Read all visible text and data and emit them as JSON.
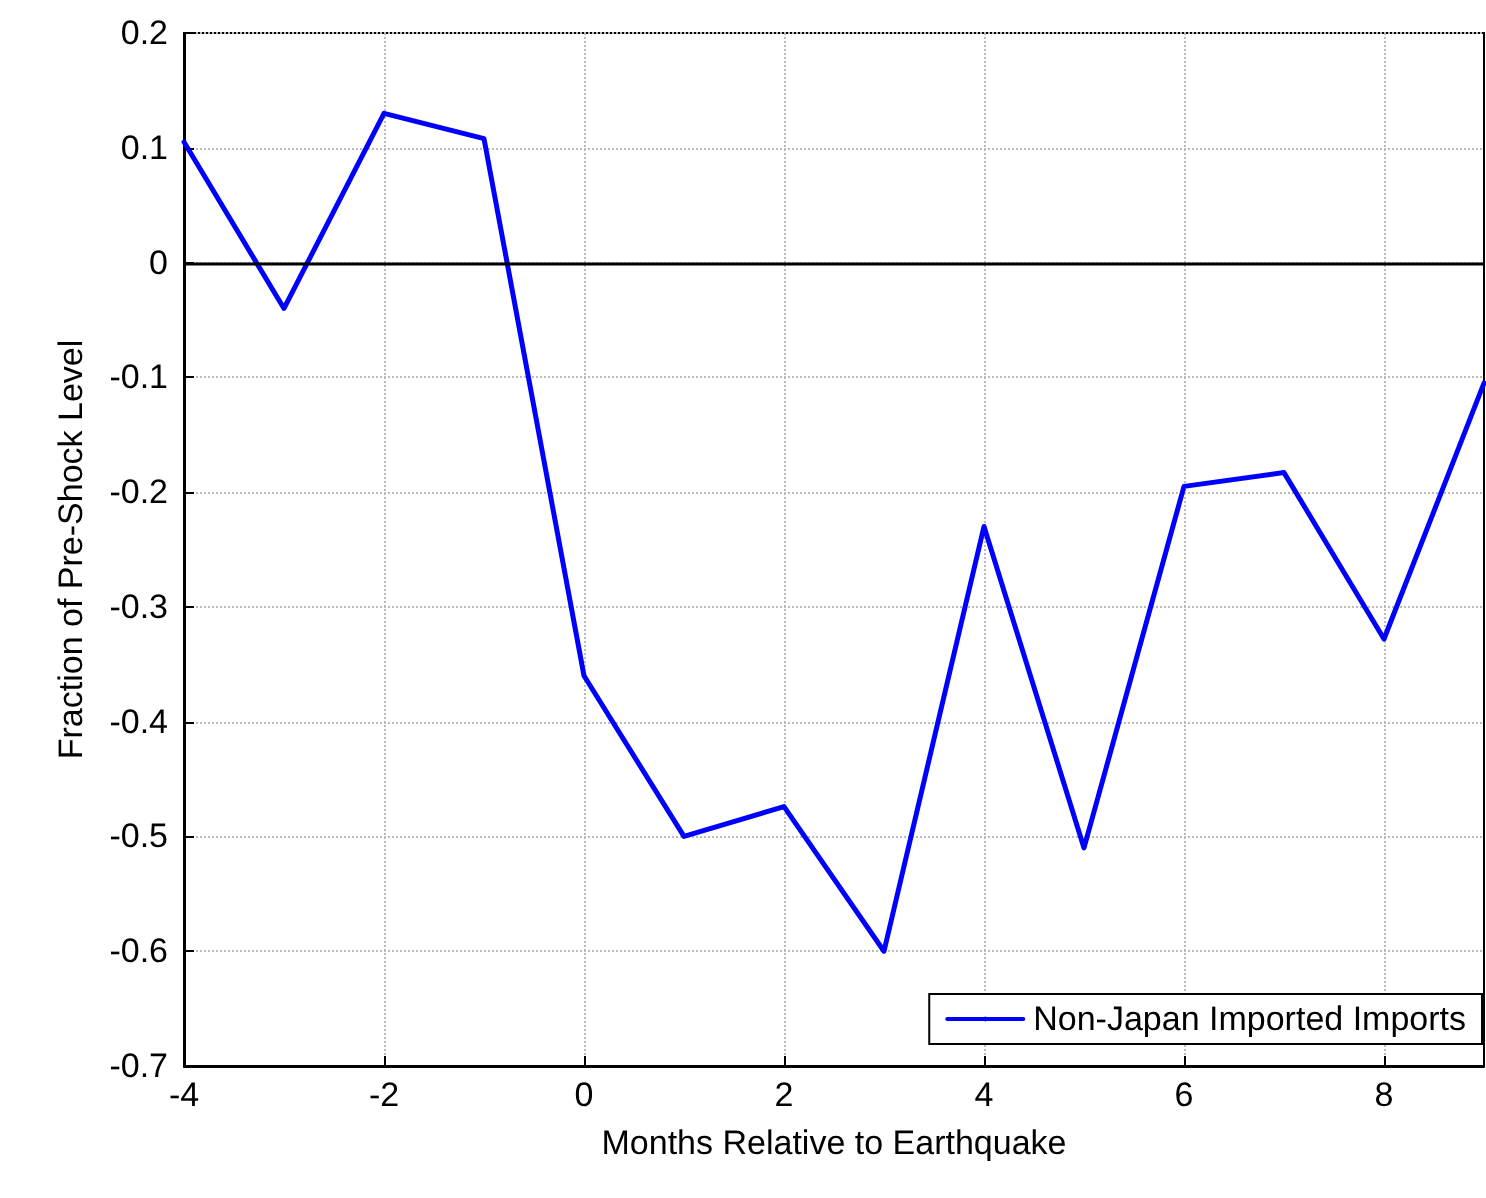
{
  "chart_data": {
    "type": "line",
    "xlabel": "Months Relative to Earthquake",
    "ylabel": "Fraction of Pre-Shock Level",
    "x": [
      -4,
      -3,
      -2,
      -1,
      0,
      1,
      2,
      3,
      4,
      5,
      6,
      7,
      8,
      9
    ],
    "series": [
      {
        "name": "Non-Japan Imported Imports",
        "color": "#0000ff",
        "values": [
          0.105,
          -0.04,
          0.13,
          0.108,
          -0.36,
          -0.5,
          -0.474,
          -0.6,
          -0.23,
          -0.51,
          -0.195,
          -0.183,
          -0.328,
          -0.105
        ]
      }
    ],
    "xlim": [
      -4,
      9
    ],
    "xticks": [
      -4,
      -2,
      0,
      2,
      4,
      6,
      8
    ],
    "ylim": [
      -0.7,
      0.2
    ],
    "yticks": [
      -0.7,
      -0.6,
      -0.5,
      -0.4,
      -0.3,
      -0.2,
      -0.1,
      0,
      0.1,
      0.2
    ],
    "ref_lines": [
      {
        "axis": "y",
        "value": 0,
        "color": "#000000"
      }
    ],
    "grid": true,
    "legend": "bottom right",
    "marker": "none",
    "line_style": "solid"
  }
}
